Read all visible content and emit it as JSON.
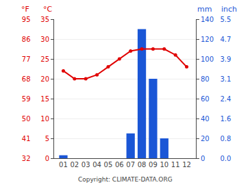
{
  "chart_data": {
    "type": "bar",
    "categories": [
      "01",
      "02",
      "03",
      "04",
      "05",
      "06",
      "07",
      "08",
      "09",
      "10",
      "11",
      "12"
    ],
    "series": [
      {
        "type": "bar",
        "axis": "y2",
        "color": "#1a56d6",
        "values": [
          3,
          0,
          0,
          0,
          0,
          0,
          25,
          130,
          80,
          20,
          0,
          0
        ]
      },
      {
        "type": "line",
        "color": "#e00000",
        "marker": "circle",
        "values": [
          22,
          20,
          20,
          21,
          23,
          25,
          27,
          27.5,
          27.5,
          27.5,
          26,
          23
        ]
      }
    ],
    "ylabel": "°C",
    "ylim": [
      0,
      35
    ],
    "yticks": [
      0,
      5,
      10,
      15,
      20,
      25,
      30,
      35
    ],
    "y2label": "mm",
    "y2lim": [
      0,
      140
    ],
    "y2ticks": [
      0,
      20,
      40,
      60,
      80,
      100,
      120,
      140
    ],
    "y3label": "°F",
    "y3lim": [
      32,
      95
    ],
    "y3ticks": [
      32,
      41,
      50,
      59,
      68,
      77,
      86,
      95
    ],
    "y4label": "inch",
    "y4ticks": [
      {
        "value": 0,
        "label": "0.0"
      },
      {
        "value": 20,
        "label": "0.8"
      },
      {
        "value": 40,
        "label": "1.6"
      },
      {
        "value": 60,
        "label": "2.4"
      },
      {
        "value": 80,
        "label": "3.1"
      },
      {
        "value": 100,
        "label": "3.9"
      },
      {
        "value": 120,
        "label": "4.7"
      },
      {
        "value": 140,
        "label": "5.5"
      }
    ],
    "grid": true,
    "annotations": [
      "Copyright: CLIMATE-DATA.ORG"
    ]
  }
}
